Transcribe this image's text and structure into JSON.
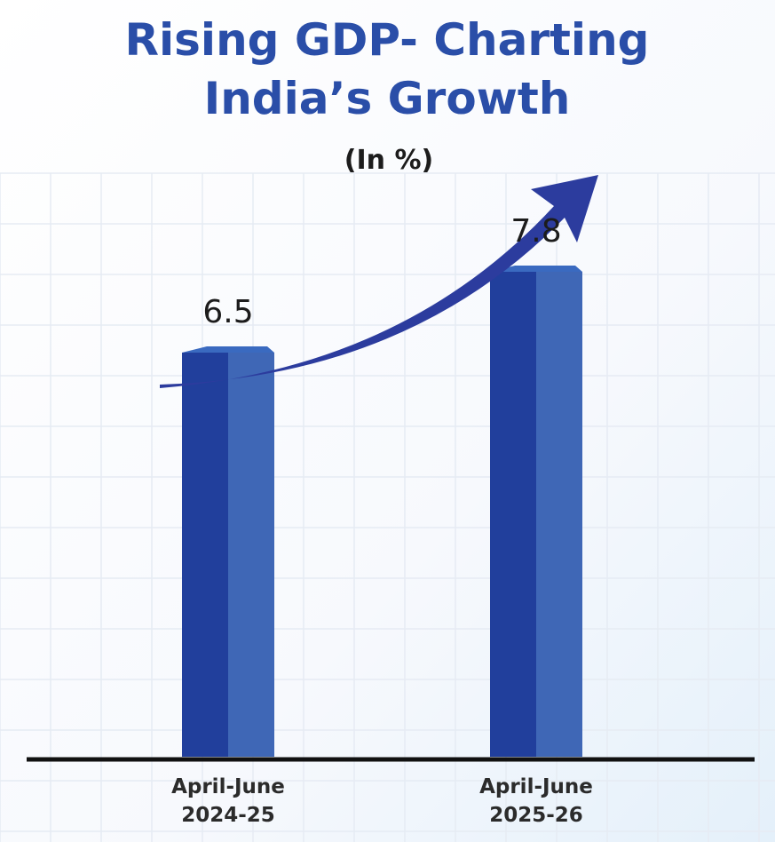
{
  "chart_data": {
    "type": "bar",
    "title_lines": [
      "Rising GDP- Charting",
      "India’s Growth"
    ],
    "subtitle": "(In %)",
    "categories": [
      [
        "April-June",
        "2024-25"
      ],
      [
        "April-June",
        "2025-26"
      ]
    ],
    "values": [
      6.5,
      7.8
    ],
    "value_labels": [
      "6.5",
      "7.8"
    ],
    "ylim": [
      0,
      12
    ],
    "grid": true,
    "colors": {
      "title": "#2a4ea8",
      "bar_front": "#213f9c",
      "bar_side": "#3f67b6",
      "bar_top": "#3a6ac0",
      "arrow": "#2c3c9e",
      "baseline": "#111111",
      "grid": "#e6ebf3"
    }
  }
}
